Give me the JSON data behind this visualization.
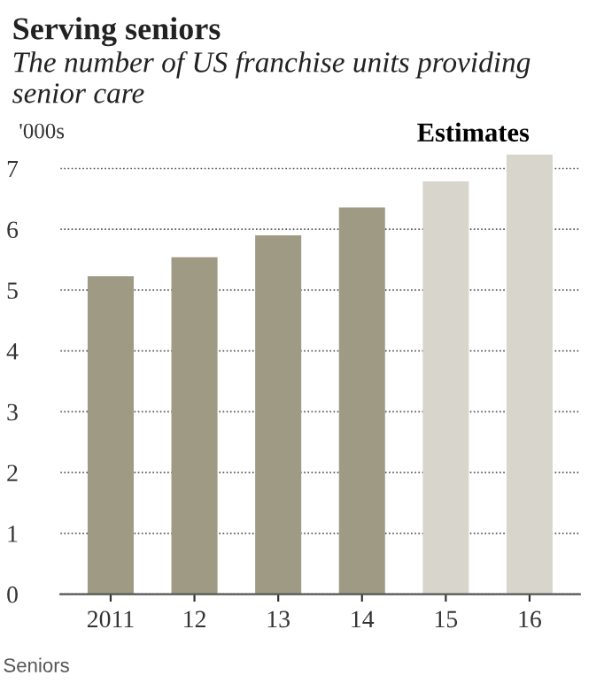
{
  "chart_data": {
    "type": "bar",
    "title": "Serving seniors",
    "subtitle": "The number of US franchise units providing senior care",
    "ylabel": "'000s",
    "categories": [
      "2011",
      "12",
      "13",
      "14",
      "15",
      "16"
    ],
    "values": [
      5.23,
      5.54,
      5.9,
      6.36,
      6.79,
      7.23
    ],
    "colors": [
      "#9e9a84",
      "#9e9a84",
      "#9e9a84",
      "#9e9a84",
      "#d8d6cc",
      "#d8d6cc"
    ],
    "ylim": [
      0,
      7.3
    ],
    "yticks": [
      0,
      1,
      2,
      3,
      4,
      5,
      6,
      7
    ],
    "grid": "y",
    "annotations": [
      {
        "text": "Estimates",
        "x": "16",
        "y": 7.23
      },
      "Seniors"
    ]
  }
}
